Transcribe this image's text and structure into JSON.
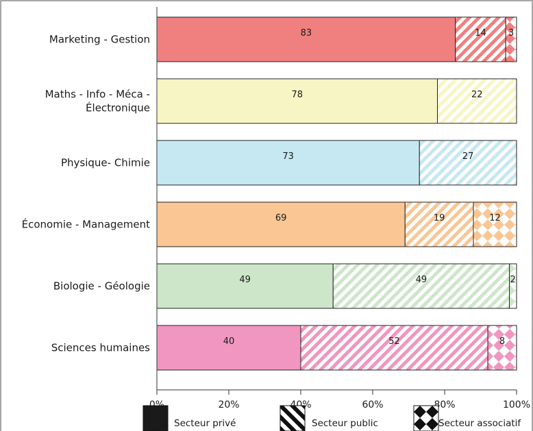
{
  "chart_data": {
    "type": "bar",
    "orientation": "horizontal",
    "stacked": true,
    "title": "",
    "xlabel": "",
    "ylabel": "",
    "xlim": [
      0,
      100
    ],
    "x_tick_labels": [
      "0%",
      "20%",
      "40%",
      "60%",
      "80%",
      "100%"
    ],
    "grid": false,
    "legend_position": "bottom",
    "categories": [
      "Marketing - Gestion",
      "Maths - Info - Méca - Électronique",
      "Physique- Chimie",
      "Économie - Management",
      "Biologie - Géologie",
      "Sciences humaines"
    ],
    "category_label_lines": [
      [
        "Marketing - Gestion"
      ],
      [
        "Maths - Info - Méca -",
        "Électronique"
      ],
      [
        "Physique- Chimie"
      ],
      [
        "Économie - Management"
      ],
      [
        "Biologie - Géologie"
      ],
      [
        "Sciences humaines"
      ]
    ],
    "category_colors": [
      "#f08080",
      "#f8f5c4",
      "#c6e8f2",
      "#f9c694",
      "#cde6c9",
      "#f096c0"
    ],
    "series": [
      {
        "name": "Secteur privé",
        "pattern": "solid",
        "values": [
          83,
          78,
          73,
          69,
          49,
          40
        ]
      },
      {
        "name": "Secteur public",
        "pattern": "diagonal-stripes",
        "values": [
          14,
          22,
          27,
          19,
          49,
          52
        ]
      },
      {
        "name": "Secteur associatif",
        "pattern": "checkerboard",
        "values": [
          3,
          0,
          0,
          12,
          2,
          8
        ]
      }
    ]
  }
}
